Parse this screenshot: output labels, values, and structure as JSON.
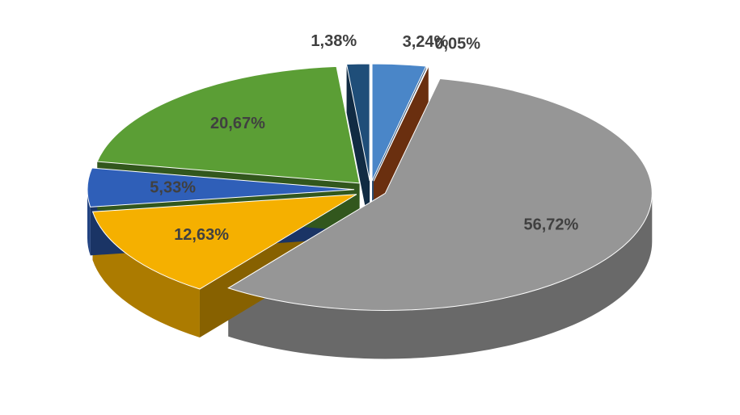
{
  "chart_data": {
    "type": "pie3d",
    "values": [
      3.24,
      0.05,
      56.72,
      12.63,
      5.33,
      20.67,
      1.38
    ],
    "value_labels": [
      "3,24%",
      "0,05%",
      "56,72%",
      "12,63%",
      "5,33%",
      "20,67%",
      "1,38%"
    ],
    "colors": [
      "#4a86c8",
      "#c0561b",
      "#969696",
      "#f5b000",
      "#2f5fb8",
      "#5b9e35",
      "#1f4e79"
    ]
  }
}
